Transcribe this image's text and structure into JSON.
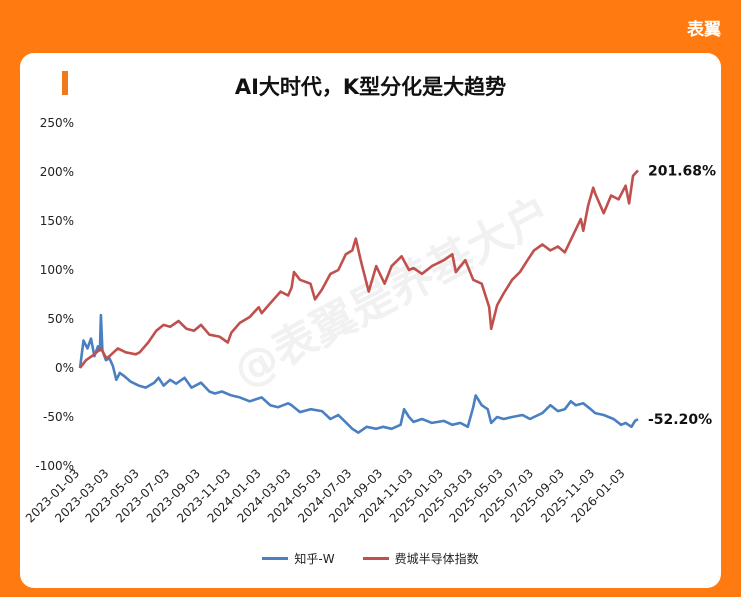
{
  "brand": "表翼",
  "title": "AI大时代，K型分化是大趋势",
  "watermark": "@表翼是养基大户",
  "colors": {
    "background": "#ff7b12",
    "accent": "#f07a1a",
    "zhihu": "#4a7fc1",
    "semi": "#c0504d"
  },
  "chart_data": {
    "type": "line",
    "x_ticks": [
      "2023-01-03",
      "2023-03-03",
      "2023-05-03",
      "2023-07-03",
      "2023-09-03",
      "2023-11-03",
      "2024-01-03",
      "2024-03-03",
      "2024-05-03",
      "2024-07-03",
      "2024-09-03",
      "2024-11-03",
      "2025-01-03",
      "2025-03-03",
      "2025-05-03",
      "2025-07-03",
      "2025-09-03",
      "2025-11-03",
      "2026-01-03"
    ],
    "y_ticks": [
      "250%",
      "200%",
      "150%",
      "100%",
      "50%",
      "0%",
      "-50%",
      "-100%"
    ],
    "ylim": [
      -100,
      250
    ],
    "xlim": [
      "2023-01-03",
      "2026-02-03"
    ],
    "series": [
      {
        "name": "知乎-W",
        "end_label": "-52.20%",
        "points": [
          [
            "2023-01-03",
            0
          ],
          [
            "2023-01-10",
            28
          ],
          [
            "2023-01-18",
            20
          ],
          [
            "2023-01-25",
            30
          ],
          [
            "2023-02-01",
            12
          ],
          [
            "2023-02-08",
            22
          ],
          [
            "2023-02-12",
            18
          ],
          [
            "2023-02-14",
            54
          ],
          [
            "2023-02-17",
            18
          ],
          [
            "2023-02-24",
            8
          ],
          [
            "2023-03-03",
            10
          ],
          [
            "2023-03-10",
            2
          ],
          [
            "2023-03-17",
            -12
          ],
          [
            "2023-03-24",
            -5
          ],
          [
            "2023-04-01",
            -8
          ],
          [
            "2023-04-15",
            -14
          ],
          [
            "2023-05-01",
            -18
          ],
          [
            "2023-05-15",
            -20
          ],
          [
            "2023-06-01",
            -15
          ],
          [
            "2023-06-10",
            -10
          ],
          [
            "2023-06-20",
            -18
          ],
          [
            "2023-07-03",
            -12
          ],
          [
            "2023-07-15",
            -16
          ],
          [
            "2023-08-01",
            -10
          ],
          [
            "2023-08-15",
            -20
          ],
          [
            "2023-09-03",
            -15
          ],
          [
            "2023-09-20",
            -24
          ],
          [
            "2023-10-01",
            -26
          ],
          [
            "2023-10-15",
            -24
          ],
          [
            "2023-11-03",
            -28
          ],
          [
            "2023-11-20",
            -30
          ],
          [
            "2023-12-10",
            -34
          ],
          [
            "2024-01-03",
            -30
          ],
          [
            "2024-01-20",
            -38
          ],
          [
            "2024-02-05",
            -40
          ],
          [
            "2024-02-25",
            -36
          ],
          [
            "2024-03-03",
            -38
          ],
          [
            "2024-03-20",
            -45
          ],
          [
            "2024-04-10",
            -42
          ],
          [
            "2024-05-03",
            -44
          ],
          [
            "2024-05-20",
            -52
          ],
          [
            "2024-06-05",
            -48
          ],
          [
            "2024-06-25",
            -58
          ],
          [
            "2024-07-03",
            -62
          ],
          [
            "2024-07-15",
            -66
          ],
          [
            "2024-08-01",
            -60
          ],
          [
            "2024-08-20",
            -62
          ],
          [
            "2024-09-03",
            -60
          ],
          [
            "2024-09-20",
            -62
          ],
          [
            "2024-10-08",
            -58
          ],
          [
            "2024-10-15",
            -42
          ],
          [
            "2024-10-25",
            -50
          ],
          [
            "2024-11-03",
            -55
          ],
          [
            "2024-11-20",
            -52
          ],
          [
            "2024-12-10",
            -56
          ],
          [
            "2025-01-03",
            -54
          ],
          [
            "2025-01-20",
            -58
          ],
          [
            "2025-02-05",
            -56
          ],
          [
            "2025-02-20",
            -60
          ],
          [
            "2025-03-03",
            -40
          ],
          [
            "2025-03-08",
            -28
          ],
          [
            "2025-03-20",
            -38
          ],
          [
            "2025-04-01",
            -42
          ],
          [
            "2025-04-08",
            -56
          ],
          [
            "2025-04-20",
            -50
          ],
          [
            "2025-05-03",
            -52
          ],
          [
            "2025-05-20",
            -50
          ],
          [
            "2025-06-10",
            -48
          ],
          [
            "2025-06-25",
            -52
          ],
          [
            "2025-07-03",
            -50
          ],
          [
            "2025-07-20",
            -46
          ],
          [
            "2025-08-05",
            -38
          ],
          [
            "2025-08-20",
            -44
          ],
          [
            "2025-09-03",
            -42
          ],
          [
            "2025-09-15",
            -34
          ],
          [
            "2025-09-25",
            -38
          ],
          [
            "2025-10-10",
            -36
          ],
          [
            "2025-10-25",
            -42
          ],
          [
            "2025-11-03",
            -46
          ],
          [
            "2025-11-20",
            -48
          ],
          [
            "2025-12-10",
            -52
          ],
          [
            "2025-12-25",
            -58
          ],
          [
            "2026-01-03",
            -56
          ],
          [
            "2026-01-15",
            -60
          ],
          [
            "2026-01-22",
            -54
          ],
          [
            "2026-01-28",
            -52.2
          ]
        ]
      },
      {
        "name": "费城半导体指数",
        "end_label": "201.68%",
        "points": [
          [
            "2023-01-03",
            0
          ],
          [
            "2023-01-15",
            8
          ],
          [
            "2023-02-01",
            14
          ],
          [
            "2023-02-14",
            20
          ],
          [
            "2023-02-25",
            10
          ],
          [
            "2023-03-03",
            12
          ],
          [
            "2023-03-20",
            20
          ],
          [
            "2023-04-05",
            16
          ],
          [
            "2023-04-25",
            14
          ],
          [
            "2023-05-03",
            16
          ],
          [
            "2023-05-20",
            26
          ],
          [
            "2023-06-05",
            38
          ],
          [
            "2023-06-20",
            44
          ],
          [
            "2023-07-03",
            42
          ],
          [
            "2023-07-20",
            48
          ],
          [
            "2023-08-05",
            40
          ],
          [
            "2023-08-20",
            38
          ],
          [
            "2023-09-03",
            44
          ],
          [
            "2023-09-20",
            34
          ],
          [
            "2023-10-10",
            32
          ],
          [
            "2023-10-27",
            26
          ],
          [
            "2023-11-03",
            36
          ],
          [
            "2023-11-20",
            46
          ],
          [
            "2023-12-10",
            52
          ],
          [
            "2023-12-28",
            62
          ],
          [
            "2024-01-03",
            56
          ],
          [
            "2024-01-20",
            66
          ],
          [
            "2024-02-10",
            78
          ],
          [
            "2024-02-25",
            74
          ],
          [
            "2024-03-03",
            82
          ],
          [
            "2024-03-08",
            98
          ],
          [
            "2024-03-20",
            90
          ],
          [
            "2024-04-10",
            86
          ],
          [
            "2024-04-19",
            70
          ],
          [
            "2024-05-03",
            80
          ],
          [
            "2024-05-20",
            96
          ],
          [
            "2024-06-05",
            100
          ],
          [
            "2024-06-20",
            116
          ],
          [
            "2024-07-03",
            120
          ],
          [
            "2024-07-10",
            132
          ],
          [
            "2024-07-20",
            110
          ],
          [
            "2024-08-05",
            78
          ],
          [
            "2024-08-20",
            104
          ],
          [
            "2024-09-06",
            86
          ],
          [
            "2024-09-20",
            104
          ],
          [
            "2024-10-10",
            114
          ],
          [
            "2024-10-25",
            100
          ],
          [
            "2024-11-03",
            102
          ],
          [
            "2024-11-20",
            96
          ],
          [
            "2024-12-10",
            104
          ],
          [
            "2025-01-03",
            110
          ],
          [
            "2025-01-20",
            116
          ],
          [
            "2025-01-27",
            98
          ],
          [
            "2025-02-15",
            110
          ],
          [
            "2025-03-03",
            90
          ],
          [
            "2025-03-20",
            86
          ],
          [
            "2025-04-04",
            62
          ],
          [
            "2025-04-08",
            40
          ],
          [
            "2025-04-20",
            64
          ],
          [
            "2025-05-03",
            76
          ],
          [
            "2025-05-20",
            90
          ],
          [
            "2025-06-05",
            98
          ],
          [
            "2025-06-20",
            110
          ],
          [
            "2025-07-03",
            120
          ],
          [
            "2025-07-20",
            126
          ],
          [
            "2025-08-05",
            120
          ],
          [
            "2025-08-20",
            124
          ],
          [
            "2025-09-03",
            118
          ],
          [
            "2025-09-20",
            136
          ],
          [
            "2025-10-05",
            152
          ],
          [
            "2025-10-10",
            140
          ],
          [
            "2025-10-20",
            166
          ],
          [
            "2025-10-30",
            184
          ],
          [
            "2025-11-03",
            178
          ],
          [
            "2025-11-20",
            158
          ],
          [
            "2025-12-05",
            176
          ],
          [
            "2025-12-20",
            172
          ],
          [
            "2026-01-03",
            186
          ],
          [
            "2026-01-10",
            168
          ],
          [
            "2026-01-18",
            196
          ],
          [
            "2026-01-28",
            201.68
          ]
        ]
      }
    ]
  }
}
